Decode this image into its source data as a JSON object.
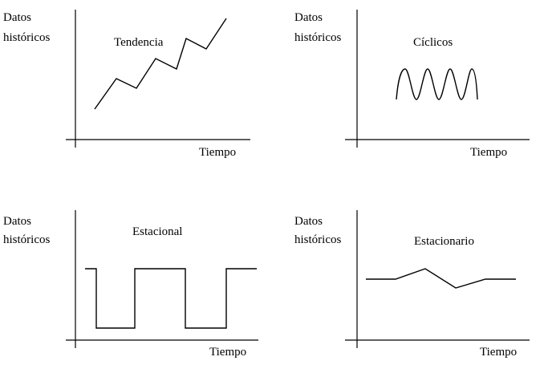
{
  "panels": [
    {
      "id": "tendencia",
      "y_label_line1": "Datos",
      "y_label_line2": "históricos",
      "title": "Tendencia",
      "x_label": "Tiempo"
    },
    {
      "id": "ciclicos",
      "y_label_line1": "Datos",
      "y_label_line2": "históricos",
      "title": "Cíclicos",
      "x_label": "Tiempo"
    },
    {
      "id": "estacional",
      "y_label_line1": "Datos",
      "y_label_line2": "históricos",
      "title": "Estacional",
      "x_label": "Tiempo"
    },
    {
      "id": "estacionario",
      "y_label_line1": "Datos",
      "y_label_line2": "históricos",
      "title": "Estacionario",
      "x_label": "Tiempo"
    }
  ],
  "colors": {
    "ink": "#000000",
    "background": "#ffffff"
  }
}
